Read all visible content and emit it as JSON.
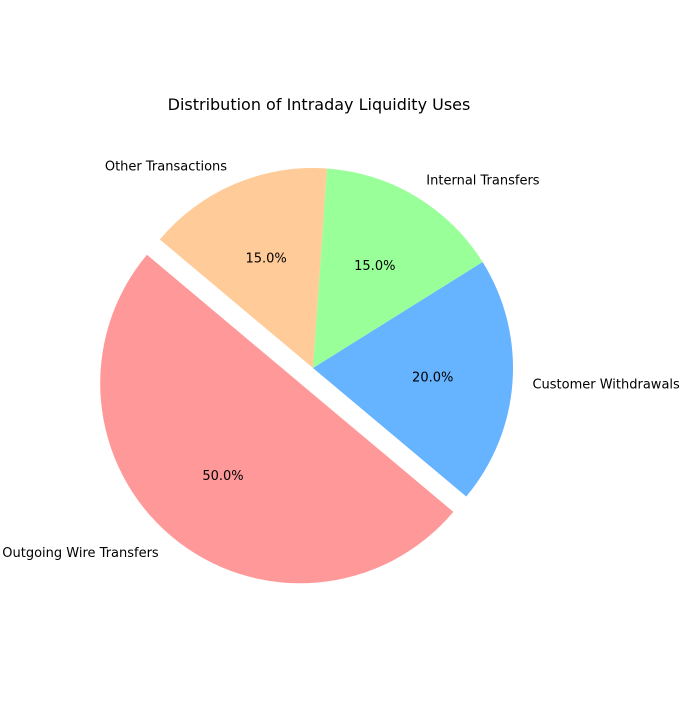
{
  "chart_data": {
    "type": "pie",
    "title": "Distribution of Intraday Liquidity Uses",
    "start_angle_deg": 140,
    "direction": "counterclockwise",
    "slices": [
      {
        "label": "Outgoing Wire Transfers",
        "value": 50,
        "pct_label": "50.0%",
        "color": "#ff9999",
        "exploded": true
      },
      {
        "label": "Customer Withdrawals",
        "value": 20,
        "pct_label": "20.0%",
        "color": "#66b3ff",
        "exploded": false
      },
      {
        "label": "Internal Transfers",
        "value": 15,
        "pct_label": "15.0%",
        "color": "#99ff99",
        "exploded": false
      },
      {
        "label": "Other Transactions",
        "value": 15,
        "pct_label": "15.0%",
        "color": "#ffcc99",
        "exploded": false
      }
    ],
    "legend": "none",
    "grid": false
  }
}
